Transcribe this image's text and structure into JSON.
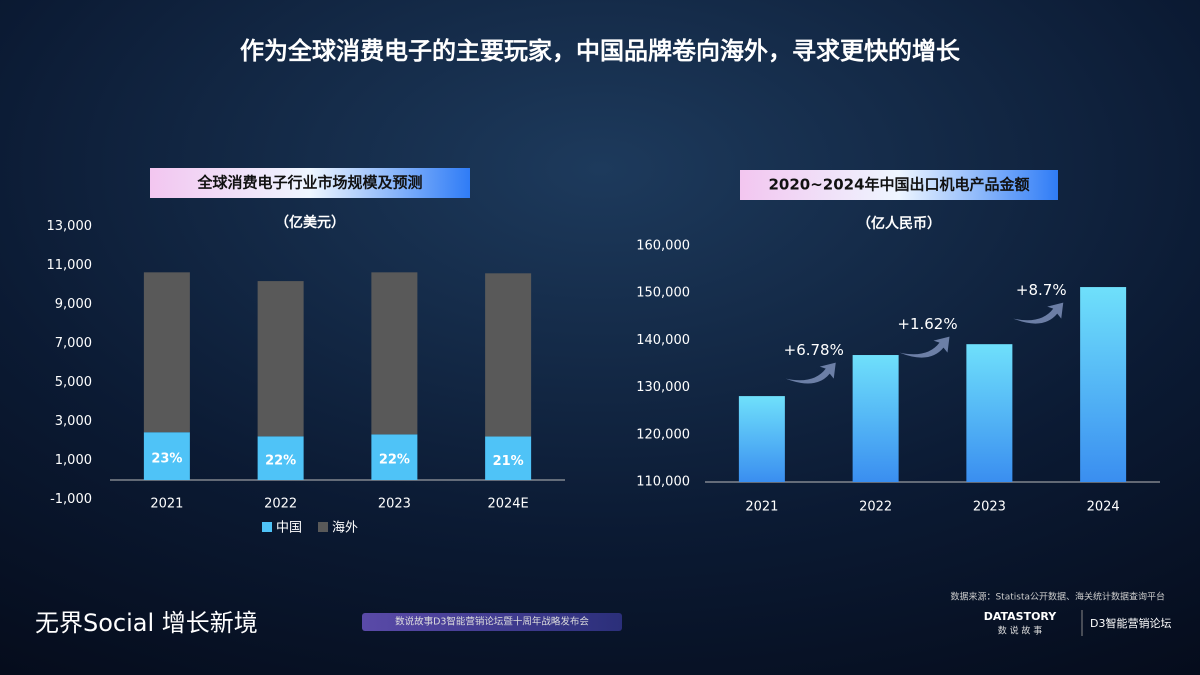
{
  "title": "作为全球消费电子的主要玩家，中国品牌卷向海外，寻求更快的增长",
  "chart_data": [
    {
      "type": "stacked_bar",
      "title": "全球消费电子行业市场规模及预测",
      "unit": "（亿美元）",
      "categories": [
        "2021",
        "2022",
        "2023",
        "2024E"
      ],
      "series": [
        {
          "name": "中国",
          "color": "#4fc3f7",
          "values": [
            2450,
            2240,
            2340,
            2230
          ],
          "data_labels": [
            "23%",
            "22%",
            "22%",
            "21%"
          ]
        },
        {
          "name": "海外",
          "color": "#595959",
          "values": [
            8200,
            7960,
            8310,
            8370
          ]
        }
      ],
      "ylim": [
        -1000,
        13000
      ],
      "yticks": [
        {
          "value": -1000,
          "label": "-1,000"
        },
        {
          "value": 1000,
          "label": "1,000"
        },
        {
          "value": 3000,
          "label": "3,000"
        },
        {
          "value": 5000,
          "label": "5,000"
        },
        {
          "value": 7000,
          "label": "7,000"
        },
        {
          "value": 9000,
          "label": "9,000"
        },
        {
          "value": 11000,
          "label": "11,000"
        },
        {
          "value": 13000,
          "label": "13,000"
        }
      ],
      "legend": "bottom"
    },
    {
      "type": "bar",
      "title": "2020~2024年中国出口机电产品金额",
      "unit": "（亿人民币）",
      "categories": [
        "2021",
        "2022",
        "2023",
        "2024"
      ],
      "values": [
        128200,
        136900,
        139200,
        151300
      ],
      "color": "#4fc3f7",
      "ylim": [
        110000,
        160000
      ],
      "yticks": [
        {
          "value": 110000,
          "label": "110,000"
        },
        {
          "value": 120000,
          "label": "120,000"
        },
        {
          "value": 130000,
          "label": "130,000"
        },
        {
          "value": 140000,
          "label": "140,000"
        },
        {
          "value": 150000,
          "label": "150,000"
        },
        {
          "value": 160000,
          "label": "160,000"
        }
      ],
      "annotations": [
        "+6.78%",
        "+1.62%",
        "+8.7%"
      ]
    }
  ],
  "footer": {
    "source": "数据来源：Statista公开数据、海关统计数据查询平台",
    "slogan": "无界Social 增长新境",
    "event": "数说故事D3智能营销论坛暨十周年战略发布会",
    "brand": "DATASTORY",
    "brand_cn": "数 说 故 事",
    "d3": "D3智能营销论坛"
  }
}
